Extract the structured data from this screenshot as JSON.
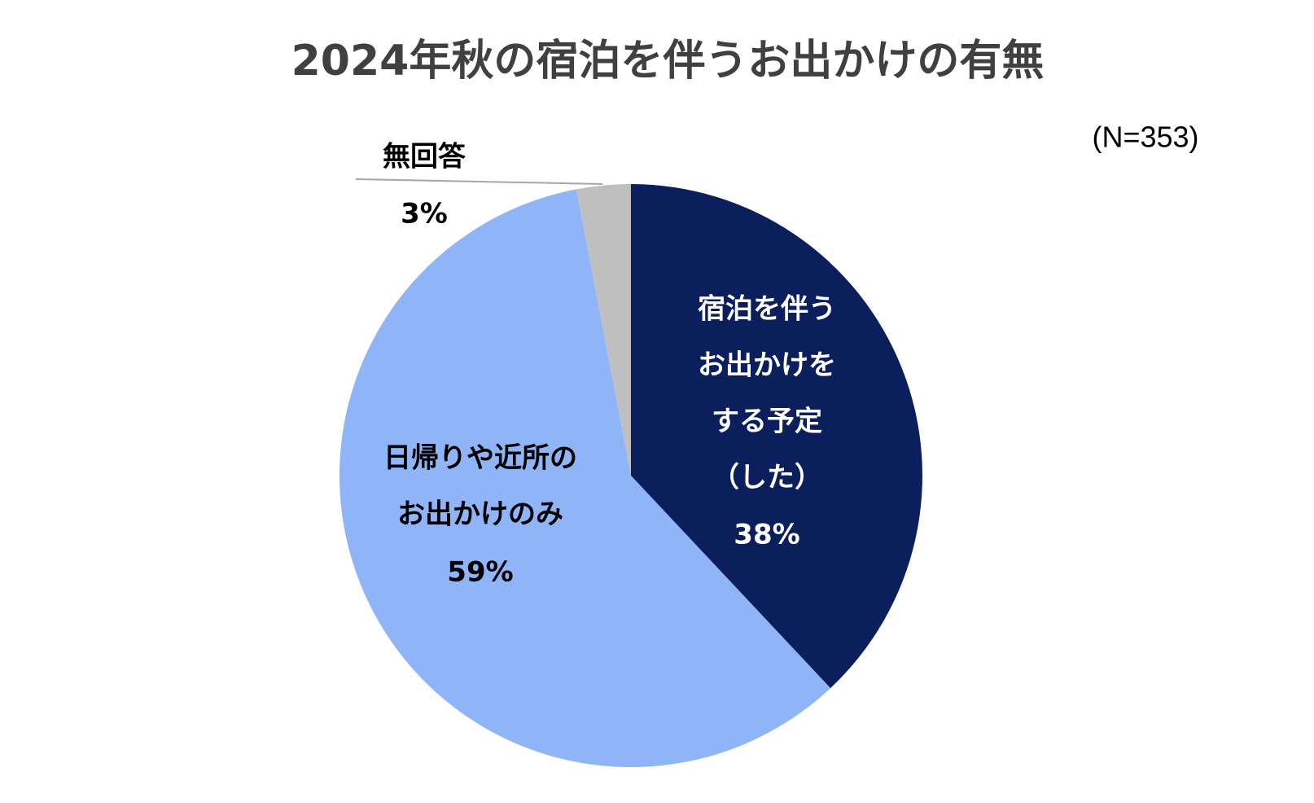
{
  "chart_data": {
    "type": "pie",
    "title": "2024年秋の宿泊を伴うお出かけの有無",
    "note": "(N=353)",
    "categories": [
      [
        "宿泊を伴う",
        "お出かけを",
        "する予定",
        "（した）"
      ],
      [
        "日帰りや近所の",
        "お出かけのみ"
      ],
      [
        "無回答"
      ]
    ],
    "values": [
      38,
      59,
      3
    ],
    "value_labels": [
      "38%",
      "59%",
      "3%"
    ],
    "colors": [
      "#0b1f5c",
      "#8fb4f7",
      "#bfbfbf"
    ]
  }
}
